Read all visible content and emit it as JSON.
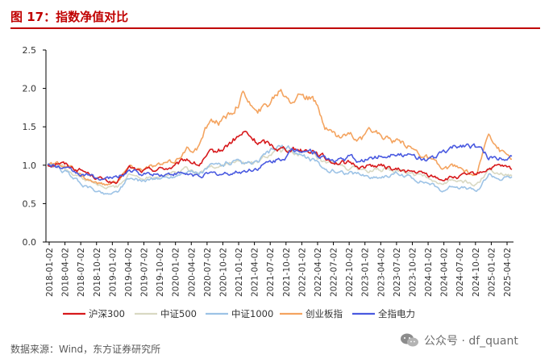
{
  "figure": {
    "title": "图 17：指数净值对比",
    "source": "数据来源：Wind，东方证券研究所",
    "watermark": "公众号 · df_quant"
  },
  "chart_data": {
    "type": "line",
    "ylim": [
      0,
      2.5
    ],
    "yticks": [
      "0.0",
      "0.5",
      "1.0",
      "1.5",
      "2.0",
      "2.5"
    ],
    "xticks": [
      "2018-01-02",
      "2018-04-02",
      "2018-07-02",
      "2018-10-02",
      "2019-01-02",
      "2019-04-02",
      "2019-07-02",
      "2019-10-02",
      "2020-01-02",
      "2020-04-02",
      "2020-07-02",
      "2020-10-02",
      "2021-01-02",
      "2021-04-02",
      "2021-07-02",
      "2021-10-02",
      "2022-01-02",
      "2022-04-02",
      "2022-07-02",
      "2022-10-02",
      "2023-01-02",
      "2023-04-02",
      "2023-07-02",
      "2023-10-02",
      "2024-01-02",
      "2024-04-02",
      "2024-07-02",
      "2024-10-02",
      "2025-01-02",
      "2025-04-02"
    ],
    "grid": false,
    "legend_position": "bottom",
    "series": [
      {
        "name": "沪深300",
        "color": "#d7191c",
        "values": [
          1.0,
          1.05,
          0.98,
          0.93,
          0.86,
          0.8,
          0.76,
          0.97,
          0.92,
          0.94,
          0.96,
          0.98,
          1.08,
          1.0,
          1.14,
          1.2,
          1.32,
          1.42,
          1.3,
          1.28,
          1.22,
          1.22,
          1.2,
          1.2,
          1.08,
          1.04,
          1.02,
          0.98,
          1.0,
          0.98,
          0.94,
          0.92,
          0.9,
          0.86,
          0.82,
          0.84,
          0.86,
          0.88,
          0.96,
          0.98,
          0.94
        ]
      },
      {
        "name": "中证500",
        "color": "#d9d9c3",
        "values": [
          1.0,
          1.0,
          0.92,
          0.83,
          0.76,
          0.7,
          0.72,
          0.88,
          0.84,
          0.86,
          0.88,
          0.9,
          0.96,
          0.9,
          0.98,
          1.0,
          1.04,
          1.02,
          1.02,
          1.12,
          1.18,
          1.18,
          1.16,
          1.1,
          1.0,
          1.0,
          0.96,
          0.94,
          0.92,
          0.94,
          0.93,
          0.9,
          0.86,
          0.82,
          0.76,
          0.8,
          0.78,
          0.74,
          0.96,
          0.9,
          0.88
        ]
      },
      {
        "name": "中证1000",
        "color": "#9dc3e6",
        "values": [
          1.0,
          0.96,
          0.86,
          0.75,
          0.68,
          0.62,
          0.66,
          0.84,
          0.8,
          0.82,
          0.83,
          0.86,
          0.94,
          0.88,
          0.98,
          1.02,
          1.04,
          1.0,
          1.02,
          1.16,
          1.24,
          1.2,
          1.12,
          1.06,
          0.94,
          0.92,
          0.9,
          0.88,
          0.84,
          0.86,
          0.88,
          0.86,
          0.8,
          0.76,
          0.66,
          0.74,
          0.7,
          0.66,
          0.88,
          0.82,
          0.84
        ]
      },
      {
        "name": "创业板指",
        "color": "#f4a460",
        "values": [
          1.0,
          1.02,
          0.96,
          0.86,
          0.78,
          0.74,
          0.8,
          0.97,
          0.95,
          0.98,
          1.0,
          1.06,
          1.2,
          1.22,
          1.6,
          1.55,
          1.72,
          1.95,
          1.65,
          1.8,
          2.0,
          1.88,
          1.95,
          1.8,
          1.5,
          1.38,
          1.42,
          1.32,
          1.44,
          1.38,
          1.3,
          1.26,
          1.16,
          1.08,
          0.94,
          0.98,
          0.92,
          0.86,
          1.46,
          1.2,
          1.1
        ]
      },
      {
        "name": "全指电力",
        "color": "#4a5ae0",
        "values": [
          1.0,
          0.98,
          0.92,
          0.88,
          0.84,
          0.82,
          0.84,
          0.94,
          0.88,
          0.89,
          0.88,
          0.89,
          0.88,
          0.86,
          0.88,
          0.88,
          0.9,
          0.92,
          0.96,
          1.02,
          1.08,
          1.16,
          1.22,
          1.18,
          1.08,
          1.06,
          1.1,
          1.04,
          1.1,
          1.12,
          1.18,
          1.12,
          1.1,
          1.08,
          1.16,
          1.22,
          1.28,
          1.24,
          1.1,
          1.1,
          1.14
        ]
      }
    ]
  }
}
